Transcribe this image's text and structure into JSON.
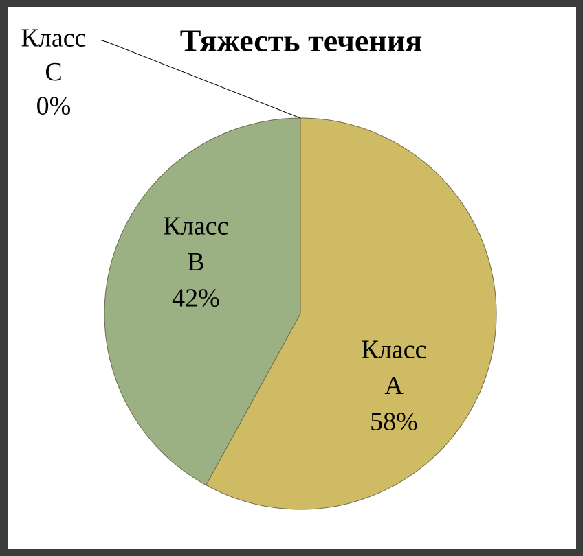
{
  "chart_data": {
    "type": "pie",
    "title": "Тяжесть течения",
    "categories": [
      "Класс A",
      "Класс B",
      "Класс C"
    ],
    "values": [
      58,
      42,
      0
    ],
    "value_labels": [
      "58%",
      "42%",
      "0%"
    ],
    "colors": [
      "#cfbb63",
      "#9bb083",
      "#a3b6d3"
    ]
  }
}
